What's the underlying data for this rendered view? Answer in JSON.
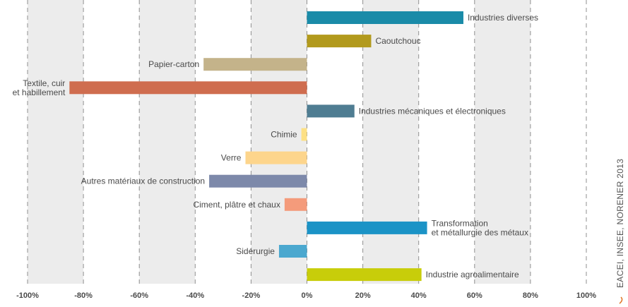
{
  "chart_data": {
    "type": "bar",
    "orientation": "horizontal",
    "xlim": [
      -100,
      100
    ],
    "tick_values": [
      -100,
      -80,
      -60,
      -40,
      -20,
      0,
      20,
      40,
      60,
      80,
      100
    ],
    "tick_labels": [
      "-100%",
      "-80%",
      "-60%",
      "-40%",
      "-20%",
      "0%",
      "20%",
      "40%",
      "60%",
      "80%",
      "100%"
    ],
    "grid": "vertical dashed lines with alternating shaded bands",
    "categories": [
      [
        "Industries diverses"
      ],
      [
        "Caoutchouc"
      ],
      [
        "Papier-carton"
      ],
      [
        "Textile, cuir",
        "et habillement"
      ],
      [
        "Industries mécaniques et électroniques"
      ],
      [
        "Chimie"
      ],
      [
        "Verre"
      ],
      [
        "Autres matériaux de construction"
      ],
      [
        "Ciment, plâtre et chaux"
      ],
      [
        "Transformation",
        "et métallurgie des métaux"
      ],
      [
        "Sidérurgie"
      ],
      [
        "Industrie agroalimentaire"
      ]
    ],
    "values": [
      56,
      23,
      -37,
      -85,
      17,
      -2,
      -22,
      -35,
      -8,
      43,
      -10,
      41
    ],
    "colors": [
      "#1a8ba8",
      "#b29a1d",
      "#c4b38a",
      "#cf6d4f",
      "#4f7d92",
      "#fde084",
      "#fdd58c",
      "#7d89aa",
      "#f49b7b",
      "#1b93c6",
      "#4ba8cf",
      "#c8cd0a"
    ]
  },
  "source": "EACEI, INSEE, NORENER 2013"
}
